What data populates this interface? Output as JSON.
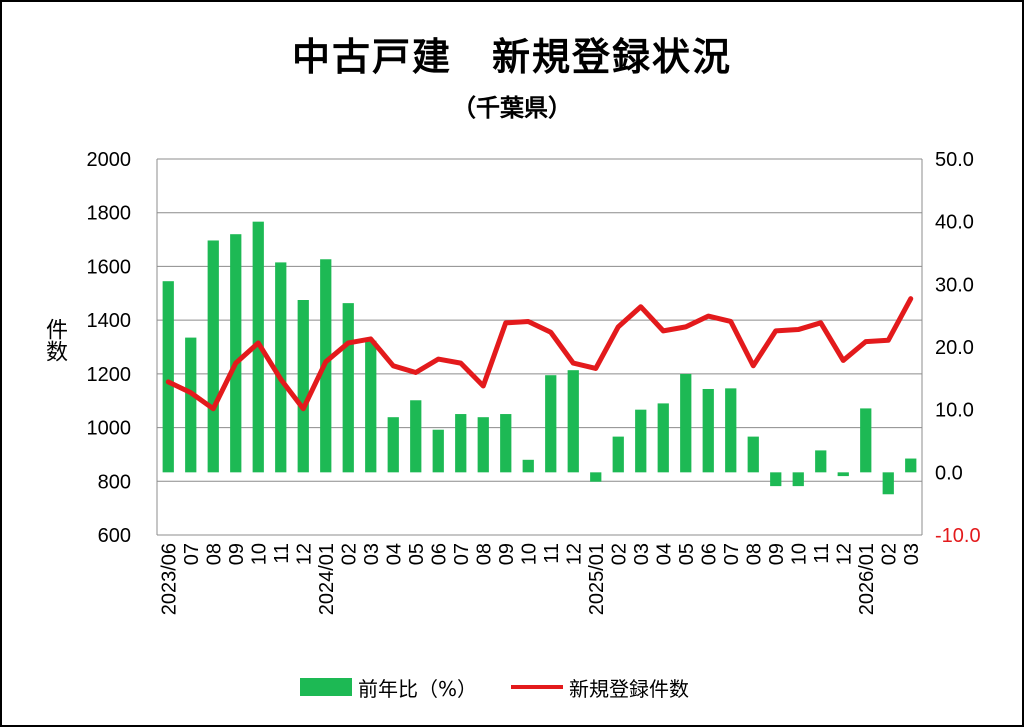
{
  "chart_data": {
    "type": "bar",
    "title": "中古戸建　新規登録状況",
    "subtitle": "（千葉県）",
    "ylabel_left": "件数",
    "ylim_left": [
      600,
      2000
    ],
    "yticks_left": [
      "2000",
      "1800",
      "1600",
      "1400",
      "1200",
      "1000",
      "800",
      "600"
    ],
    "ylim_right": [
      -10,
      50
    ],
    "yticks_right": [
      "50.0",
      "40.0",
      "30.0",
      "20.0",
      "10.0",
      "0.0",
      "-10.0"
    ],
    "grid": true,
    "legend_position": "bottom",
    "categories": [
      "2023/06",
      "07",
      "08",
      "09",
      "10",
      "11",
      "12",
      "2024/01",
      "02",
      "03",
      "04",
      "05",
      "06",
      "07",
      "08",
      "09",
      "10",
      "11",
      "12",
      "2025/01",
      "02",
      "03",
      "04",
      "05",
      "06",
      "07",
      "08",
      "09",
      "10",
      "11",
      "12",
      "2026/01",
      "02",
      "03"
    ],
    "series": [
      {
        "name": "前年比（%）",
        "type": "bar",
        "axis": "right",
        "color": "#1db954",
        "values": [
          30.5,
          21.5,
          37.0,
          38.0,
          40.0,
          33.5,
          27.5,
          34.0,
          27.0,
          21.0,
          8.8,
          11.5,
          6.8,
          9.3,
          8.8,
          9.3,
          2.0,
          15.5,
          16.3,
          -1.5,
          5.7,
          10.0,
          11.0,
          15.7,
          13.3,
          13.4,
          5.7,
          -2.2,
          -2.2,
          3.5,
          -0.6,
          10.2,
          -3.5,
          2.2
        ]
      },
      {
        "name": "新規登録件数",
        "type": "line",
        "axis": "left",
        "color": "#e31a1c",
        "values": [
          1170,
          1130,
          1070,
          1240,
          1315,
          1180,
          1070,
          1245,
          1315,
          1330,
          1230,
          1205,
          1255,
          1240,
          1155,
          1390,
          1395,
          1355,
          1240,
          1220,
          1375,
          1450,
          1360,
          1375,
          1415,
          1395,
          1230,
          1360,
          1365,
          1390,
          1250,
          1320,
          1325,
          1480
        ]
      }
    ]
  }
}
